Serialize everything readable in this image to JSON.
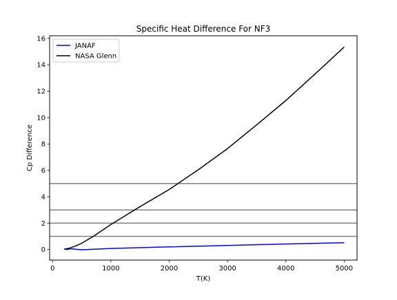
{
  "chart_data": {
    "type": "line",
    "title": "Specific Heat Difference For NF3",
    "xlabel": "T(K)",
    "ylabel": "Cp Difference",
    "xlim": [
      -50,
      5220
    ],
    "ylim": [
      -0.8,
      16.2
    ],
    "xticks": [
      0,
      1000,
      2000,
      3000,
      4000,
      5000
    ],
    "yticks": [
      0,
      2,
      4,
      6,
      8,
      10,
      12,
      14,
      16
    ],
    "grid": false,
    "legend_position": "top-left",
    "hlines": [
      1,
      2,
      3,
      5
    ],
    "hline_color": "#808080",
    "series": [
      {
        "name": "JANAF",
        "color": "#0000ff",
        "x": [
          200,
          250,
          300,
          400,
          500,
          1000,
          2000,
          3000,
          4000,
          5000
        ],
        "y": [
          0.05,
          0.0,
          0.06,
          0.02,
          -0.02,
          0.08,
          0.2,
          0.31,
          0.42,
          0.52
        ]
      },
      {
        "name": "NASA Glenn",
        "color": "#000000",
        "x": [
          200,
          300,
          400,
          500,
          700,
          1000,
          1500,
          2000,
          2500,
          3000,
          3500,
          4000,
          4500,
          5000
        ],
        "y": [
          0.02,
          0.12,
          0.28,
          0.48,
          1.0,
          1.9,
          3.25,
          4.55,
          6.05,
          7.65,
          9.45,
          11.3,
          13.3,
          15.35
        ]
      }
    ]
  }
}
